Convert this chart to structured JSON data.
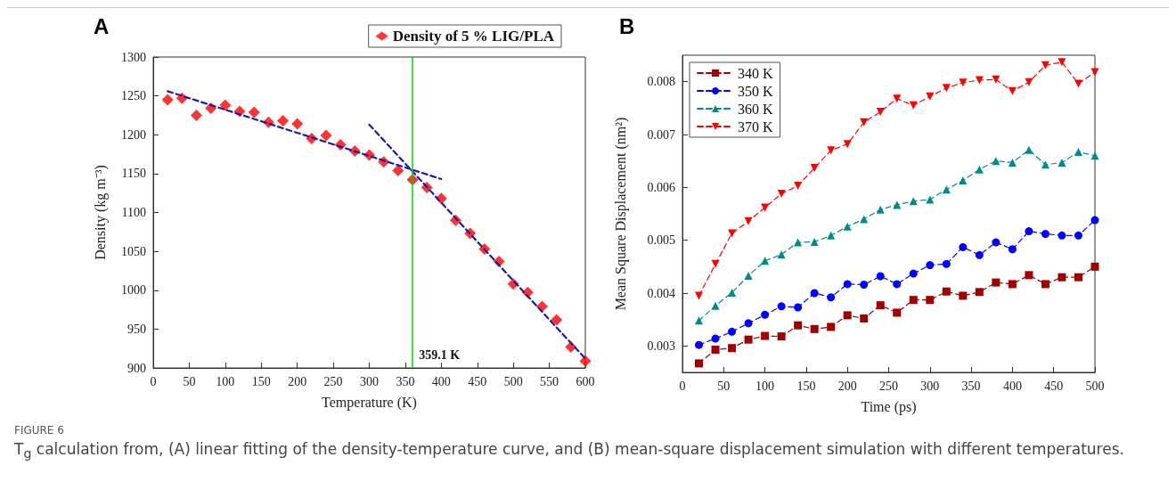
{
  "chart_data": [
    {
      "type": "scatter",
      "title": "A",
      "xlabel": "Temperature (K)",
      "ylabel": "Density (kg m⁻³)",
      "x": [
        20,
        40,
        60,
        80,
        100,
        120,
        140,
        160,
        180,
        200,
        220,
        240,
        260,
        280,
        300,
        320,
        340,
        360,
        380,
        400,
        420,
        440,
        460,
        480,
        500,
        520,
        540,
        560,
        580,
        600
      ],
      "series": [
        {
          "name": "Density of 5 % LIG/PLA",
          "color": "#ff0000",
          "marker": "diamond",
          "values": [
            1245,
            1247,
            1225,
            1234,
            1238,
            1230,
            1229,
            1216,
            1218,
            1214,
            1195,
            1199,
            1187,
            1179,
            1174,
            1165,
            1154,
            1142,
            1132,
            1118,
            1090,
            1073,
            1053,
            1037,
            1008,
            997,
            979,
            962,
            927,
            909
          ]
        },
        {
          "type": "line",
          "color": "#1a1aa6",
          "line_style": "dashed",
          "marker": "none",
          "x": [
            20,
            400
          ],
          "values": [
            1256,
            1143
          ]
        },
        {
          "type": "line",
          "color": "#1a1aa6",
          "line_style": "dashed",
          "marker": "none",
          "x": [
            300,
            600
          ],
          "values": [
            1213,
            912
          ]
        }
      ],
      "xlim": [
        0,
        600
      ],
      "xticks": [
        0,
        50,
        100,
        150,
        200,
        250,
        300,
        350,
        400,
        450,
        500,
        550,
        600
      ],
      "ylim": [
        900,
        1300
      ],
      "yticks": [
        900,
        950,
        1000,
        1050,
        1100,
        1150,
        1200,
        1250,
        1300
      ],
      "ref_lines": [
        {
          "axis": "x",
          "value": 359.1,
          "label": "359.1 K",
          "color": "#00dd00"
        }
      ],
      "grid": false,
      "legend": "top right",
      "annotations": [
        "FIGURE 6",
        "T$_{g}$ calculation from, (A) linear fitting of the density-temperature curve, and (B) mean-square displacement simulation with different temperatures."
      ]
    },
    {
      "type": "line",
      "title": "B",
      "xlabel": "Time (ps)",
      "ylabel": "Mean Square Displacement (nm²)",
      "x": [
        20,
        40,
        60,
        80,
        100,
        120,
        140,
        160,
        180,
        200,
        220,
        240,
        260,
        280,
        300,
        320,
        340,
        360,
        380,
        400,
        420,
        440,
        460,
        480,
        500
      ],
      "line_style": "dashed",
      "series": [
        {
          "name": "340 K",
          "color": "#a00000",
          "marker": "square",
          "values": [
            0.00267,
            0.00293,
            0.00296,
            0.00312,
            0.00319,
            0.00318,
            0.00339,
            0.00332,
            0.00336,
            0.00358,
            0.00352,
            0.00377,
            0.00363,
            0.00387,
            0.00387,
            0.00403,
            0.00395,
            0.00402,
            0.0042,
            0.00417,
            0.00434,
            0.00417,
            0.0043,
            0.0043,
            0.0045
          ]
        },
        {
          "name": "350 K",
          "color": "#0000ff",
          "marker": "circle",
          "values": [
            0.00302,
            0.00314,
            0.00327,
            0.00343,
            0.00359,
            0.00375,
            0.00373,
            0.004,
            0.00392,
            0.00417,
            0.00416,
            0.00432,
            0.00417,
            0.00437,
            0.00453,
            0.00455,
            0.00487,
            0.00472,
            0.00496,
            0.00483,
            0.00517,
            0.00512,
            0.00509,
            0.00509,
            0.00538
          ]
        },
        {
          "name": "360 K",
          "color": "#008b8b",
          "marker": "triangle",
          "values": [
            0.00348,
            0.00376,
            0.00401,
            0.00433,
            0.00461,
            0.00473,
            0.00496,
            0.00497,
            0.00509,
            0.00526,
            0.0054,
            0.00558,
            0.00567,
            0.00574,
            0.00577,
            0.00596,
            0.00613,
            0.00634,
            0.0065,
            0.00647,
            0.00671,
            0.00643,
            0.00647,
            0.00667,
            0.0066
          ]
        },
        {
          "name": "370 K",
          "color": "#ff0000",
          "marker": "triangle-down",
          "values": [
            0.00395,
            0.00455,
            0.00513,
            0.00536,
            0.00562,
            0.00588,
            0.00603,
            0.00637,
            0.0067,
            0.00682,
            0.00723,
            0.00743,
            0.00768,
            0.00755,
            0.00772,
            0.00788,
            0.00798,
            0.00803,
            0.00804,
            0.00782,
            0.00799,
            0.00831,
            0.00837,
            0.00796,
            0.00818
          ]
        }
      ],
      "xlim": [
        0,
        500
      ],
      "xticks": [
        0,
        50,
        100,
        150,
        200,
        250,
        300,
        350,
        400,
        450,
        500
      ],
      "ylim": [
        0.0025,
        0.0085
      ],
      "yticks": [
        0.003,
        0.004,
        0.005,
        0.006,
        0.007,
        0.008
      ],
      "grid": false,
      "legend": "top left"
    }
  ]
}
